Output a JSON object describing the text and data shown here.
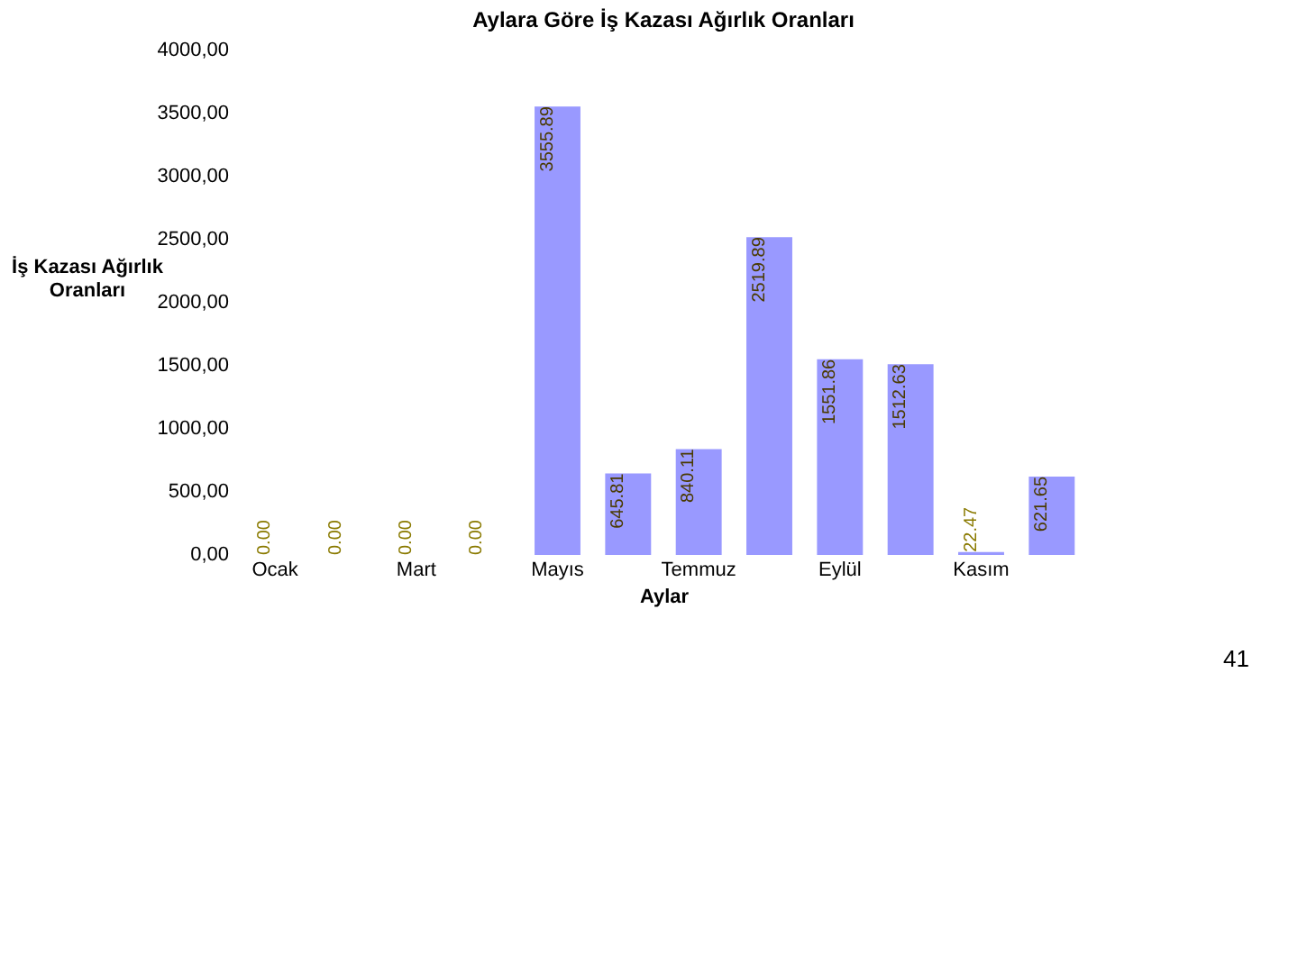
{
  "chart_data": {
    "type": "bar",
    "title": "Aylara Göre İş Kazası Ağırlık Oranları",
    "xlabel": "Aylar",
    "ylabel": "İş Kazası Ağırlık Oranları",
    "categories": [
      "Ocak",
      null,
      "Mart",
      null,
      "Mayıs",
      null,
      "Temmuz",
      null,
      "Eylül",
      null,
      "Kasım",
      null
    ],
    "values": [
      0,
      0,
      0,
      0,
      3555.89,
      645.81,
      840.11,
      2519.89,
      1551.86,
      1512.63,
      22.47,
      621.65
    ],
    "value_labels": [
      "0.00",
      "0.00",
      "0.00",
      "0.00",
      "3555.89",
      "645.81",
      "840.11",
      "2519.89",
      "1551.86",
      "1512.63",
      "22.47",
      "621.65"
    ],
    "color": "#9999ff",
    "grid": false,
    "data_labels": true,
    "ylim": [
      0,
      4000
    ],
    "yticks": [
      {
        "value": 0,
        "label": "0,00"
      },
      {
        "value": 500,
        "label": "500,00"
      },
      {
        "value": 1000,
        "label": "1000,00"
      },
      {
        "value": 1500,
        "label": "1500,00"
      },
      {
        "value": 2000,
        "label": "2000,00"
      },
      {
        "value": 2500,
        "label": "2500,00"
      },
      {
        "value": 3000,
        "label": "3000,00"
      },
      {
        "value": 3500,
        "label": "3500,00"
      },
      {
        "value": 4000,
        "label": "4000,00"
      }
    ],
    "annotations": [
      "41"
    ]
  }
}
